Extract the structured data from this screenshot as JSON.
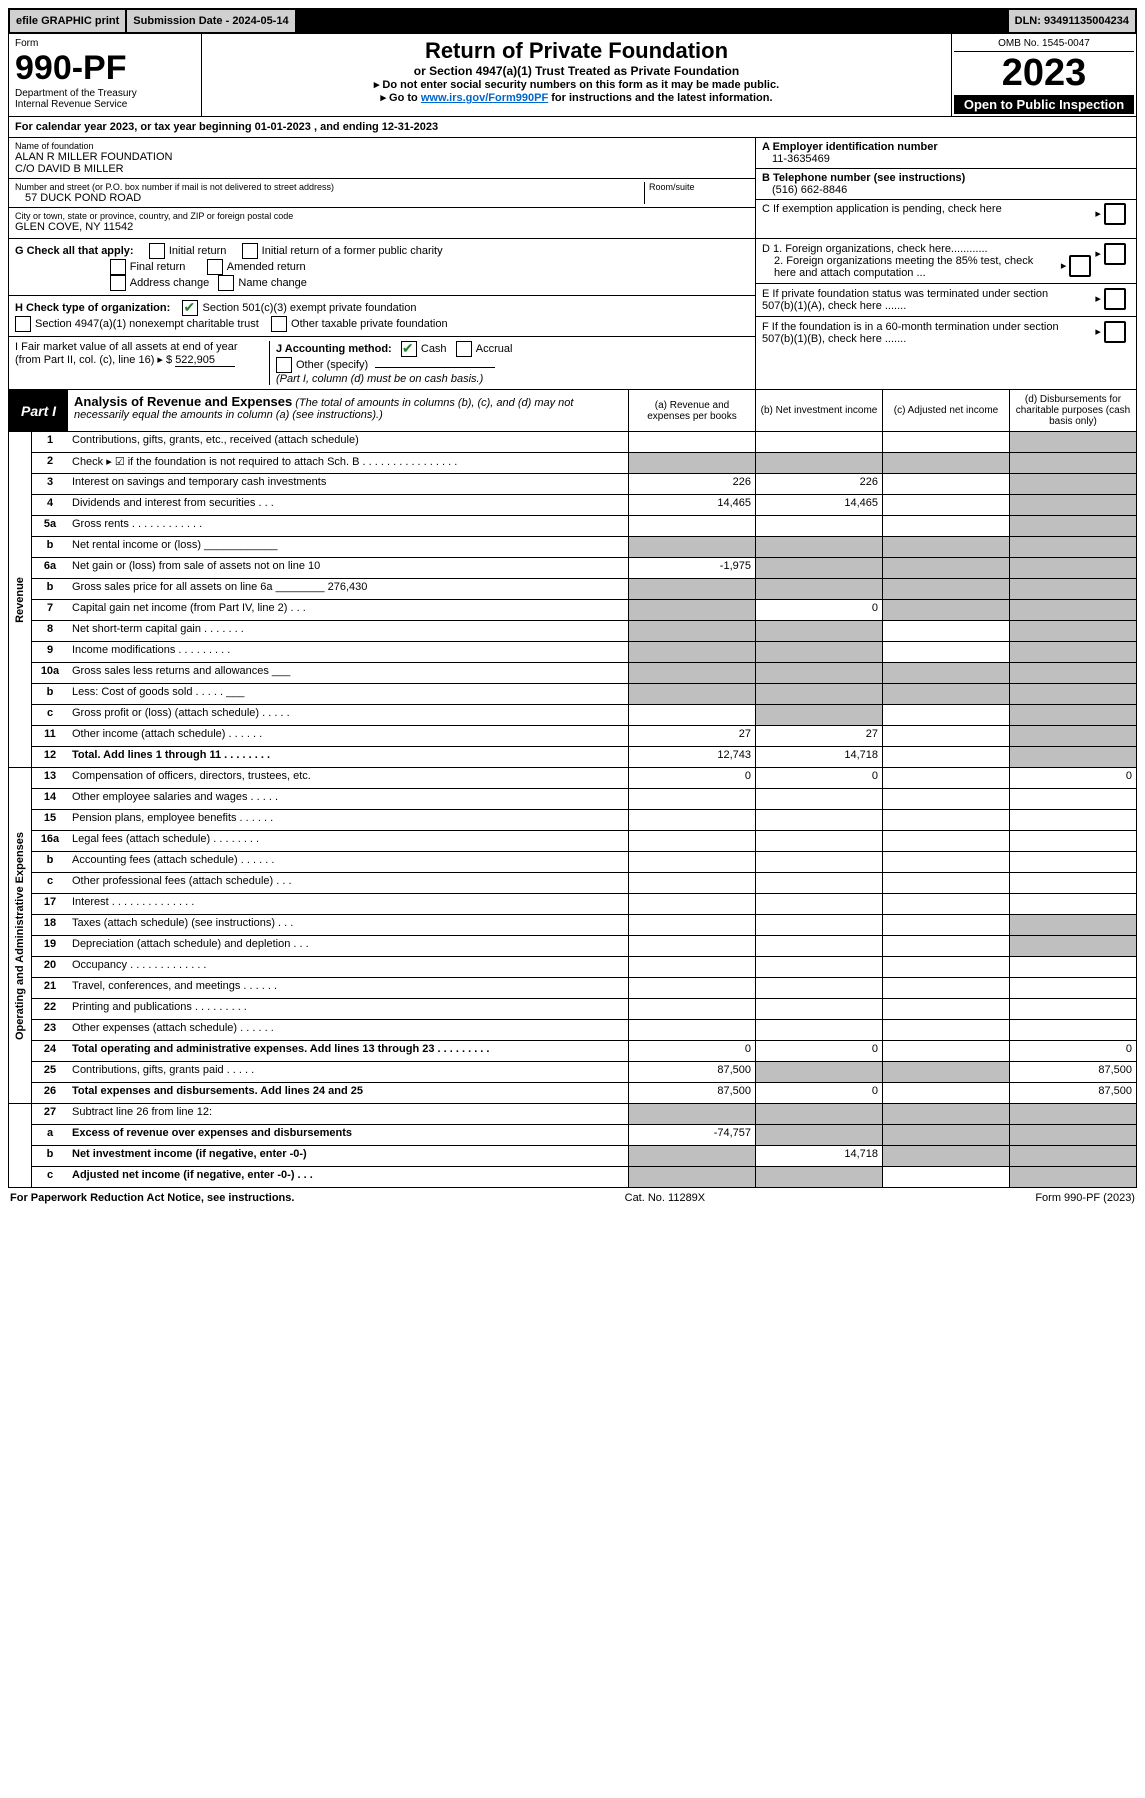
{
  "top_bar": {
    "efile": "efile GRAPHIC print",
    "submission": "Submission Date - 2024-05-14",
    "dln": "DLN: 93491135004234"
  },
  "header": {
    "form_label": "Form",
    "form_number": "990-PF",
    "dept": "Department of the Treasury",
    "irs": "Internal Revenue Service",
    "title": "Return of Private Foundation",
    "subtitle": "or Section 4947(a)(1) Trust Treated as Private Foundation",
    "instr1": "▸ Do not enter social security numbers on this form as it may be made public.",
    "instr2_pre": "▸ Go to ",
    "instr2_link": "www.irs.gov/Form990PF",
    "instr2_post": " for instructions and the latest information.",
    "omb": "OMB No. 1545-0047",
    "year": "2023",
    "open": "Open to Public Inspection"
  },
  "cal_year": "For calendar year 2023, or tax year beginning 01-01-2023            , and ending 12-31-2023",
  "foundation": {
    "name_label": "Name of foundation",
    "name1": "ALAN R MILLER FOUNDATION",
    "name2": "C/O DAVID B MILLER",
    "addr_label": "Number and street (or P.O. box number if mail is not delivered to street address)",
    "addr": "57 DUCK POND ROAD",
    "room_label": "Room/suite",
    "city_label": "City or town, state or province, country, and ZIP or foreign postal code",
    "city": "GLEN COVE, NY  11542",
    "ein_label": "A Employer identification number",
    "ein": "11-3635469",
    "phone_label": "B  Telephone number (see instructions)",
    "phone": "(516) 662-8846",
    "c_label": "C  If exemption application is pending, check here",
    "d1": "D 1. Foreign organizations, check here............",
    "d2": "2. Foreign organizations meeting the 85% test, check here and attach computation ...",
    "e_label": "E  If private foundation status was terminated under section 507(b)(1)(A), check here .......",
    "f_label": "F  If the foundation is in a 60-month termination under section 507(b)(1)(B), check here .......",
    "g_label": "G  Check all that apply:",
    "g_opts": [
      "Initial return",
      "Initial return of a former public charity",
      "Final return",
      "Amended return",
      "Address change",
      "Name change"
    ],
    "h_label": "H Check type of organization:",
    "h_opt1": "Section 501(c)(3) exempt private foundation",
    "h_opt2": "Section 4947(a)(1) nonexempt charitable trust",
    "h_opt3": "Other taxable private foundation",
    "i_label": "I Fair market value of all assets at end of year (from Part II, col. (c), line 16) ▸ $",
    "i_value": "522,905",
    "j_label": "J Accounting method:",
    "j_cash": "Cash",
    "j_accrual": "Accrual",
    "j_other": "Other (specify)",
    "j_note": "(Part I, column (d) must be on cash basis.)"
  },
  "part1": {
    "tab": "Part I",
    "title": "Analysis of Revenue and Expenses",
    "title_note": "(The total of amounts in columns (b), (c), and (d) may not necessarily equal the amounts in column (a) (see instructions).)",
    "cols": {
      "a": "(a)  Revenue and expenses per books",
      "b": "(b)  Net investment income",
      "c": "(c)  Adjusted net income",
      "d": "(d)  Disbursements for charitable purposes (cash basis only)"
    }
  },
  "sections": {
    "revenue": "Revenue",
    "opex": "Operating and Administrative Expenses"
  },
  "rows": [
    {
      "num": "1",
      "label": "Contributions, gifts, grants, etc., received (attach schedule)",
      "a": "",
      "b": "",
      "c": "",
      "d": "shaded"
    },
    {
      "num": "2",
      "label": "Check ▸ ☑ if the foundation is not required to attach Sch. B   .  .  .  .  .  .  .  .  .  .  .  .  .  .  .  .",
      "bold_markers": true,
      "a": "shaded",
      "b": "shaded",
      "c": "shaded",
      "d": "shaded"
    },
    {
      "num": "3",
      "label": "Interest on savings and temporary cash investments",
      "a": "226",
      "b": "226",
      "c": "",
      "d": "shaded"
    },
    {
      "num": "4",
      "label": "Dividends and interest from securities   .  .  .",
      "a": "14,465",
      "b": "14,465",
      "c": "",
      "d": "shaded"
    },
    {
      "num": "5a",
      "label": "Gross rents   .  .  .  .  .  .  .  .  .  .  .  .",
      "a": "",
      "b": "",
      "c": "",
      "d": "shaded"
    },
    {
      "num": "b",
      "label": "Net rental income or (loss)  ____________",
      "a": "shaded",
      "b": "shaded",
      "c": "shaded",
      "d": "shaded"
    },
    {
      "num": "6a",
      "label": "Net gain or (loss) from sale of assets not on line 10",
      "a": "-1,975",
      "b": "shaded",
      "c": "shaded",
      "d": "shaded"
    },
    {
      "num": "b",
      "label": "Gross sales price for all assets on line 6a ________ 276,430",
      "inline_val": "276,430",
      "a": "shaded",
      "b": "shaded",
      "c": "shaded",
      "d": "shaded"
    },
    {
      "num": "7",
      "label": "Capital gain net income (from Part IV, line 2)   .  .  .",
      "a": "shaded",
      "b": "0",
      "c": "shaded",
      "d": "shaded"
    },
    {
      "num": "8",
      "label": "Net short-term capital gain   .  .  .  .  .  .  .",
      "a": "shaded",
      "b": "shaded",
      "c": "",
      "d": "shaded"
    },
    {
      "num": "9",
      "label": "Income modifications   .  .  .  .  .  .  .  .  .",
      "a": "shaded",
      "b": "shaded",
      "c": "",
      "d": "shaded"
    },
    {
      "num": "10a",
      "label": "Gross sales less returns and allowances  ___",
      "a": "shaded",
      "b": "shaded",
      "c": "shaded",
      "d": "shaded"
    },
    {
      "num": "b",
      "label": "Less: Cost of goods sold   .  .  .  .  .  ___",
      "a": "shaded",
      "b": "shaded",
      "c": "shaded",
      "d": "shaded"
    },
    {
      "num": "c",
      "label": "Gross profit or (loss) (attach schedule)   .  .  .  .  .",
      "a": "",
      "b": "shaded",
      "c": "",
      "d": "shaded"
    },
    {
      "num": "11",
      "label": "Other income (attach schedule)   .  .  .  .  .  .",
      "a": "27",
      "b": "27",
      "c": "",
      "d": "shaded"
    },
    {
      "num": "12",
      "label": "Total. Add lines 1 through 11  .  .  .  .  .  .  .  .",
      "bold": true,
      "a": "12,743",
      "b": "14,718",
      "c": "",
      "d": "shaded"
    }
  ],
  "exp_rows": [
    {
      "num": "13",
      "label": "Compensation of officers, directors, trustees, etc.",
      "a": "0",
      "b": "0",
      "c": "",
      "d": "0"
    },
    {
      "num": "14",
      "label": "Other employee salaries and wages   .  .  .  .  .",
      "a": "",
      "b": "",
      "c": "",
      "d": ""
    },
    {
      "num": "15",
      "label": "Pension plans, employee benefits   .  .  .  .  .  .",
      "a": "",
      "b": "",
      "c": "",
      "d": ""
    },
    {
      "num": "16a",
      "label": "Legal fees (attach schedule)   .  .  .  .  .  .  .  .",
      "a": "",
      "b": "",
      "c": "",
      "d": ""
    },
    {
      "num": "b",
      "label": "Accounting fees (attach schedule)   .  .  .  .  .  .",
      "a": "",
      "b": "",
      "c": "",
      "d": ""
    },
    {
      "num": "c",
      "label": "Other professional fees (attach schedule)   .  .  .",
      "a": "",
      "b": "",
      "c": "",
      "d": ""
    },
    {
      "num": "17",
      "label": "Interest   .  .  .  .  .  .  .  .  .  .  .  .  .  .",
      "a": "",
      "b": "",
      "c": "",
      "d": ""
    },
    {
      "num": "18",
      "label": "Taxes (attach schedule) (see instructions)   .  .  .",
      "a": "",
      "b": "",
      "c": "",
      "d": "shaded"
    },
    {
      "num": "19",
      "label": "Depreciation (attach schedule) and depletion   .  .  .",
      "a": "",
      "b": "",
      "c": "",
      "d": "shaded"
    },
    {
      "num": "20",
      "label": "Occupancy   .  .  .  .  .  .  .  .  .  .  .  .  .",
      "a": "",
      "b": "",
      "c": "",
      "d": ""
    },
    {
      "num": "21",
      "label": "Travel, conferences, and meetings   .  .  .  .  .  .",
      "a": "",
      "b": "",
      "c": "",
      "d": ""
    },
    {
      "num": "22",
      "label": "Printing and publications   .  .  .  .  .  .  .  .  .",
      "a": "",
      "b": "",
      "c": "",
      "d": ""
    },
    {
      "num": "23",
      "label": "Other expenses (attach schedule)   .  .  .  .  .  .",
      "a": "",
      "b": "",
      "c": "",
      "d": ""
    },
    {
      "num": "24",
      "label": "Total operating and administrative expenses. Add lines 13 through 23   .  .  .  .  .  .  .  .  .",
      "bold": true,
      "a": "0",
      "b": "0",
      "c": "",
      "d": "0"
    },
    {
      "num": "25",
      "label": "Contributions, gifts, grants paid   .  .  .  .  .",
      "a": "87,500",
      "b": "shaded",
      "c": "shaded",
      "d": "87,500"
    },
    {
      "num": "26",
      "label": "Total expenses and disbursements. Add lines 24 and 25",
      "bold": true,
      "a": "87,500",
      "b": "0",
      "c": "",
      "d": "87,500"
    }
  ],
  "final_rows": [
    {
      "num": "27",
      "label": "Subtract line 26 from line 12:",
      "a": "shaded",
      "b": "shaded",
      "c": "shaded",
      "d": "shaded"
    },
    {
      "num": "a",
      "label": "Excess of revenue over expenses and disbursements",
      "bold": true,
      "a": "-74,757",
      "b": "shaded",
      "c": "shaded",
      "d": "shaded"
    },
    {
      "num": "b",
      "label": "Net investment income (if negative, enter -0-)",
      "bold": true,
      "a": "shaded",
      "b": "14,718",
      "c": "shaded",
      "d": "shaded"
    },
    {
      "num": "c",
      "label": "Adjusted net income (if negative, enter -0-)  .  .  .",
      "bold": true,
      "a": "shaded",
      "b": "shaded",
      "c": "",
      "d": "shaded"
    }
  ],
  "footer": {
    "left": "For Paperwork Reduction Act Notice, see instructions.",
    "mid": "Cat. No. 11289X",
    "right": "Form 990-PF (2023)"
  }
}
